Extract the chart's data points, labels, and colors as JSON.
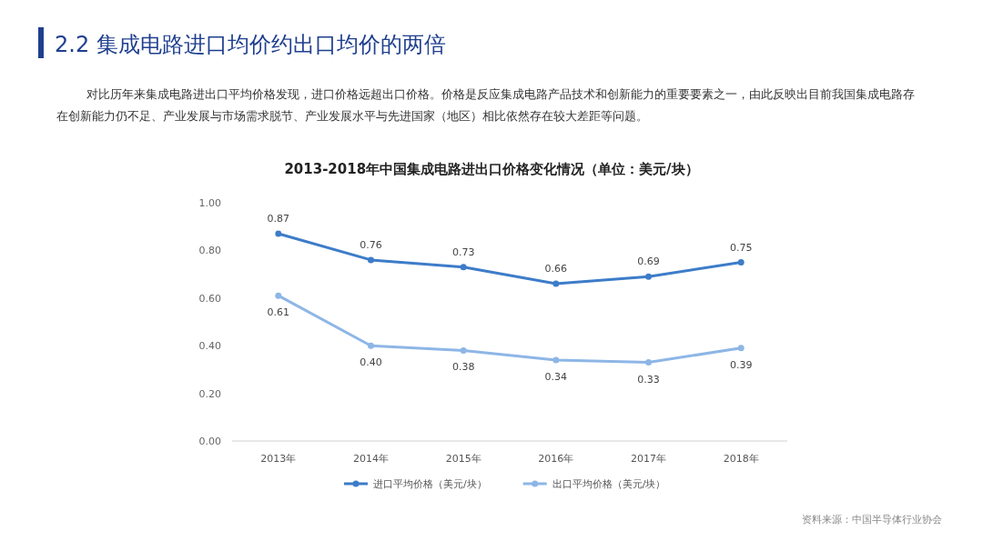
{
  "chart_data": {
    "type": "line",
    "title": "2013-2018年中国集成电路进出口价格变化情况（单位：美元/块）",
    "annotations": [
      "2.2 集成电路进口均价约出口均价的两倍",
      "对比历年来集成电路进出口平均价格发现，进口价格远超出口价格。价格是反应集成电路产品技术和创新能力的重要要素之一，由此反映出目前我国集成电路存在创新能力仍不足、产业发展与市场需求脱节、产业发展水平与先进国家（地区）相比依然存在较大差距等问题。",
      "资料来源：中国半导体行业协会"
    ],
    "categories": [
      "2013年",
      "2014年",
      "2015年",
      "2016年",
      "2017年",
      "2018年"
    ],
    "series": [
      {
        "name": "进口平均价格（美元/块）",
        "color": "#3d7cc9",
        "values": [
          0.87,
          0.76,
          0.73,
          0.66,
          0.69,
          0.75
        ],
        "value_labels": [
          "0.87",
          "0.76",
          "0.73",
          "0.66",
          "0.69",
          "0.75"
        ]
      },
      {
        "name": "出口平均价格（美元/块）",
        "color": "#8db6e6",
        "values": [
          0.61,
          0.4,
          0.38,
          0.34,
          0.33,
          0.39
        ],
        "value_labels": [
          "0.61",
          "0.40",
          "0.38",
          "0.34",
          "0.33",
          "0.39"
        ]
      }
    ],
    "ylim": [
      0,
      1
    ],
    "yticks": [
      {
        "value": 0,
        "label": "0.00"
      },
      {
        "value": 0.2,
        "label": "0.20"
      },
      {
        "value": 0.4,
        "label": "0.40"
      },
      {
        "value": 0.6,
        "label": "0.60"
      },
      {
        "value": 0.8,
        "label": "0.80"
      },
      {
        "value": 1,
        "label": "1.00"
      }
    ],
    "marker": "circle",
    "legend": "bottom",
    "grid": false
  }
}
